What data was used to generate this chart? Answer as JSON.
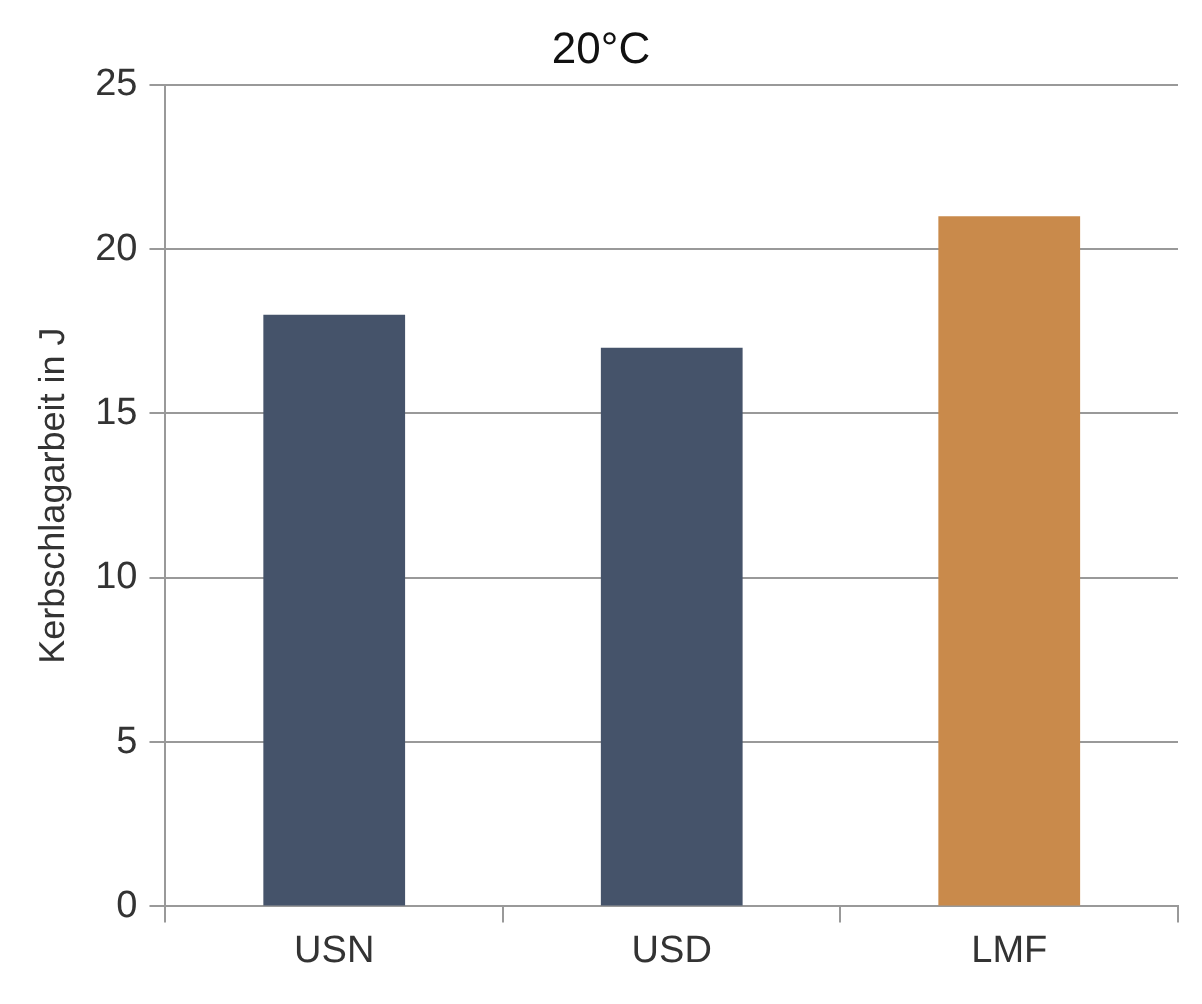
{
  "chart_data": {
    "type": "bar",
    "title": "20°C",
    "ylabel": "Kerbschlagarbeit in J",
    "categories": [
      "USN",
      "USD",
      "LMF"
    ],
    "values": [
      18,
      17,
      21
    ],
    "colors": [
      "#45536a",
      "#45536a",
      "#c98a4b"
    ],
    "ylim": [
      0,
      25
    ],
    "yticks": [
      0,
      5,
      10,
      15,
      20,
      25
    ],
    "grid": "y",
    "legend": false
  }
}
